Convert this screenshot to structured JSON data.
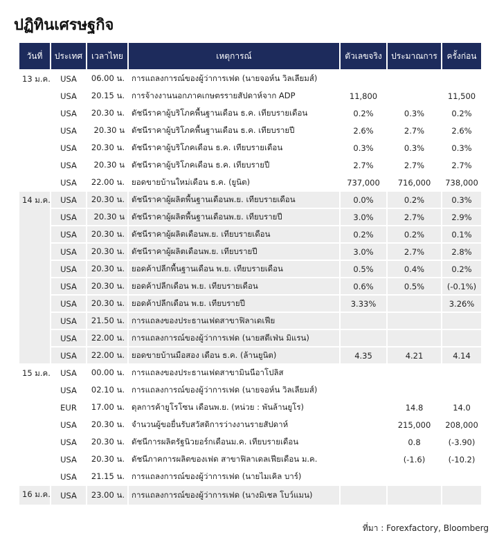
{
  "header": {
    "title": "ปฏิทินเศรษฐกิจ"
  },
  "table": {
    "headers": [
      "วันที่",
      "ประเทศ",
      "เวลาไทย",
      "เหตุการณ์",
      "ตัวเลขจริง",
      "ประมาณการ",
      "ครั้งก่อน"
    ],
    "groups": [
      {
        "date": "13 ม.ค.",
        "rows": [
          {
            "country": "USA",
            "time": "06.00 น.",
            "event": "การแถลงการณ์ของผู้ว่าการเฟด (นายจอห์น วิลเลียมส์)"
          },
          {
            "country": "USA",
            "time": "20.15 น.",
            "event": "การจ้างงานนอกภาคเกษตรรายสัปดาห์จาก ADP",
            "actual": "11,800",
            "previous": "11,500"
          },
          {
            "country": "USA",
            "time": "20.30 น.",
            "event": "ดัชนีราคาผู้บริโภคพื้นฐานเดือน ธ.ค. เทียบรายเดือน",
            "actual": "0.2%",
            "forecast": "0.3%",
            "previous": "0.2%"
          },
          {
            "country": "USA",
            "time": "20.30 น",
            "event": "ดัชนีราคาผู้บริโภคพื้นฐานเดือน ธ.ค. เทียบรายปี",
            "actual": "2.6%",
            "forecast": "2.7%",
            "previous": "2.6%"
          },
          {
            "country": "USA",
            "time": "20.30 น.",
            "event": "ดัชนีราคาผู้บริโภคเดือน ธ.ค. เทียบรายเดือน",
            "actual": "0.3%",
            "forecast": "0.3%",
            "previous": "0.3%"
          },
          {
            "country": "USA",
            "time": "20.30 น",
            "event": "ดัชนีราคาผู้บริโภคเดือน ธ.ค. เทียบรายปี",
            "actual": "2.7%",
            "forecast": "2.7%",
            "previous": "2.7%"
          },
          {
            "country": "USA",
            "time": "22.00 น.",
            "event": "ยอดขายบ้านใหม่เดือน ธ.ค. (ยูนิต)",
            "actual": "737,000",
            "forecast": "716,000",
            "previous": "738,000"
          }
        ]
      },
      {
        "date": "14 ม.ค.",
        "rows": [
          {
            "country": "USA",
            "time": "20.30 น.",
            "event": "ดัชนีราคาผู้ผลิตพื้นฐานเดือนพ.ย. เทียบรายเดือน",
            "actual": "0.0%",
            "forecast": "0.2%",
            "previous": "0.3%"
          },
          {
            "country": "USA",
            "time": "20.30 น",
            "event": "ดัชนีราคาผู้ผลิตพื้นฐานเดือนพ.ย. เทียบรายปี",
            "actual": "3.0%",
            "forecast": "2.7%",
            "previous": "2.9%"
          },
          {
            "country": "USA",
            "time": "20.30 น.",
            "event": "ดัชนีราคาผู้ผลิตเดือนพ.ย. เทียบรายเดือน",
            "actual": "0.2%",
            "forecast": "0.2%",
            "previous": "0.1%"
          },
          {
            "country": "USA",
            "time": "20.30 น.",
            "event": "ดัชนีราคาผู้ผลิตเดือนพ.ย. เทียบรายปี",
            "actual": "3.0%",
            "forecast": "2.7%",
            "previous": "2.8%"
          },
          {
            "country": "USA",
            "time": "20.30 น.",
            "event": "ยอดค้าปลีกพื้นฐานเดือน พ.ย. เทียบรายเดือน",
            "actual": "0.5%",
            "forecast": "0.4%",
            "previous": "0.2%"
          },
          {
            "country": "USA",
            "time": "20.30 น.",
            "event": "ยอดค้าปลีกเดือน พ.ย. เทียบรายเดือน",
            "actual": "0.6%",
            "forecast": "0.5%",
            "previous": "(-0.1%)"
          },
          {
            "country": "USA",
            "time": "20.30 น.",
            "event": "ยอดค้าปลีกเดือน พ.ย. เทียบรายปี",
            "actual": "3.33%",
            "previous": "3.26%"
          },
          {
            "country": "USA",
            "time": "21.50 น.",
            "event": "การแถลงของประธานเฟดสาขาฟิลาเดเฟีย"
          },
          {
            "country": "USA",
            "time": "22.00 น.",
            "event": "การแถลงการณ์ของผู้ว่าการเฟด (นายสตีเฟ่น มิแรน)"
          },
          {
            "country": "USA",
            "time": "22.00 น.",
            "event": "ยอดขายบ้านมือสอง เดือน ธ.ค. (ล้านยูนิต)",
            "actual": "4.35",
            "forecast": "4.21",
            "previous": "4.14"
          }
        ]
      },
      {
        "date": "15 ม.ค.",
        "rows": [
          {
            "country": "USA",
            "time": "00.00 น.",
            "event": "การแถลงของประธานเฟดสาขามินนีอาโปลิส"
          },
          {
            "country": "USA",
            "time": "02.10 น.",
            "event": "การแถลงการณ์ของผู้ว่าการเฟด (นายจอห์น วิลเลียมส์)"
          },
          {
            "country": "EUR",
            "time": "17.00 น.",
            "event": "ดุลการค้ายูโรโซน เดือนพ.ย. (หน่วย : พันล้านยูโร)",
            "forecast": "14.8",
            "previous": "14.0"
          },
          {
            "country": "USA",
            "time": "20.30 น.",
            "event": "จำนวนผู้ขอยื่นรับสวัสดิการว่างงานรายสัปดาห์",
            "forecast": "215,000",
            "previous": "208,000"
          },
          {
            "country": "USA",
            "time": "20.30 น.",
            "event": "ดัชนีการผลิตรัฐนิวยอร์กเดือนม.ค. เทียบรายเดือน",
            "forecast": "0.8",
            "previous": "(-3.90)"
          },
          {
            "country": "USA",
            "time": "20.30 น.",
            "event": "ดัชนีภาคการผลิตของเฟด สาขาฟิลาเดลเฟียเดือน ม.ค.",
            "forecast": "(-1.6)",
            "previous": "(-10.2)"
          },
          {
            "country": "USA",
            "time": "21.15 น.",
            "event": "การแถลงการณ์ของผู้ว่าการเฟด (นายไมเคิล บาร์)"
          }
        ]
      },
      {
        "date": "16 ม.ค.",
        "rows": [
          {
            "country": "USA",
            "time": "23.00 น.",
            "event": "การแถลงการณ์ของผู้ว่าการเฟด (นางมิเชล โบว์แมน)"
          }
        ]
      }
    ]
  },
  "footer": {
    "source": "ที่มา : Forexfactory, Bloomberg"
  }
}
